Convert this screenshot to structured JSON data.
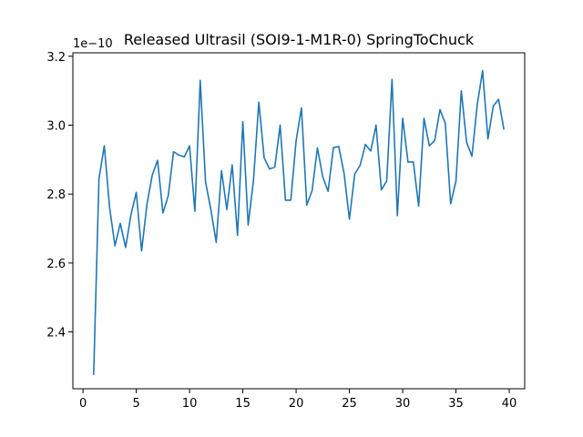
{
  "chart_data": {
    "type": "line",
    "title": "Released Ultrasil (SOI9-1-M1R-0) SpringToChuck",
    "xlabel": "",
    "ylabel": "",
    "y_offset_label": "1e−10",
    "xlim": [
      -0.95,
      41.45
    ],
    "ylim": [
      2.235,
      3.21
    ],
    "x_ticks": [
      0,
      5,
      10,
      15,
      20,
      25,
      30,
      35,
      40
    ],
    "x_tick_labels": [
      "0",
      "5",
      "10",
      "15",
      "20",
      "25",
      "30",
      "35",
      "40"
    ],
    "y_ticks": [
      2.4,
      2.6,
      2.8,
      3.0,
      3.2
    ],
    "y_tick_labels": [
      "2.4",
      "2.6",
      "2.8",
      "3.0",
      "3.2"
    ],
    "grid": false,
    "color": "#1f77b4",
    "series": [
      {
        "x": [
          1.0,
          1.5,
          2.0,
          2.5,
          3.0,
          3.5,
          4.0,
          4.5,
          5.0,
          5.5,
          6.0,
          6.5,
          7.0,
          7.5,
          8.0,
          8.5,
          9.0,
          9.5,
          10.0,
          10.5,
          11.0,
          11.5,
          12.0,
          12.5,
          13.0,
          13.5,
          14.0,
          14.5,
          15.0,
          15.5,
          16.0,
          16.5,
          17.0,
          17.5,
          18.0,
          18.5,
          19.0,
          19.5,
          20.0,
          20.5,
          21.0,
          21.5,
          22.0,
          22.5,
          23.0,
          23.5,
          24.0,
          24.5,
          25.0,
          25.5,
          26.0,
          26.5,
          27.0,
          27.5,
          28.0,
          28.5,
          29.0,
          29.5,
          30.0,
          30.5,
          31.0,
          31.5,
          32.0,
          32.5,
          33.0,
          33.5,
          34.0,
          34.5,
          35.0,
          35.5,
          36.0,
          36.5,
          37.0,
          37.5,
          38.0,
          38.5,
          39.0,
          39.5
        ],
        "y": [
          2.275,
          2.845,
          2.94,
          2.76,
          2.65,
          2.715,
          2.645,
          2.74,
          2.805,
          2.635,
          2.77,
          2.855,
          2.898,
          2.745,
          2.795,
          2.923,
          2.913,
          2.908,
          2.94,
          2.75,
          3.13,
          2.835,
          2.755,
          2.66,
          2.868,
          2.755,
          2.885,
          2.68,
          3.01,
          2.71,
          2.84,
          3.067,
          2.905,
          2.873,
          2.878,
          3.0,
          2.782,
          2.782,
          2.955,
          3.05,
          2.768,
          2.81,
          2.934,
          2.85,
          2.808,
          2.935,
          2.938,
          2.86,
          2.727,
          2.858,
          2.883,
          2.944,
          2.925,
          3.0,
          2.812,
          2.838,
          3.133,
          2.737,
          3.02,
          2.893,
          2.893,
          2.765,
          3.02,
          2.94,
          2.955,
          3.045,
          3.005,
          2.772,
          2.838,
          3.1,
          2.95,
          2.91,
          3.06,
          3.158,
          2.96,
          3.055,
          3.075,
          2.987
        ]
      }
    ]
  }
}
